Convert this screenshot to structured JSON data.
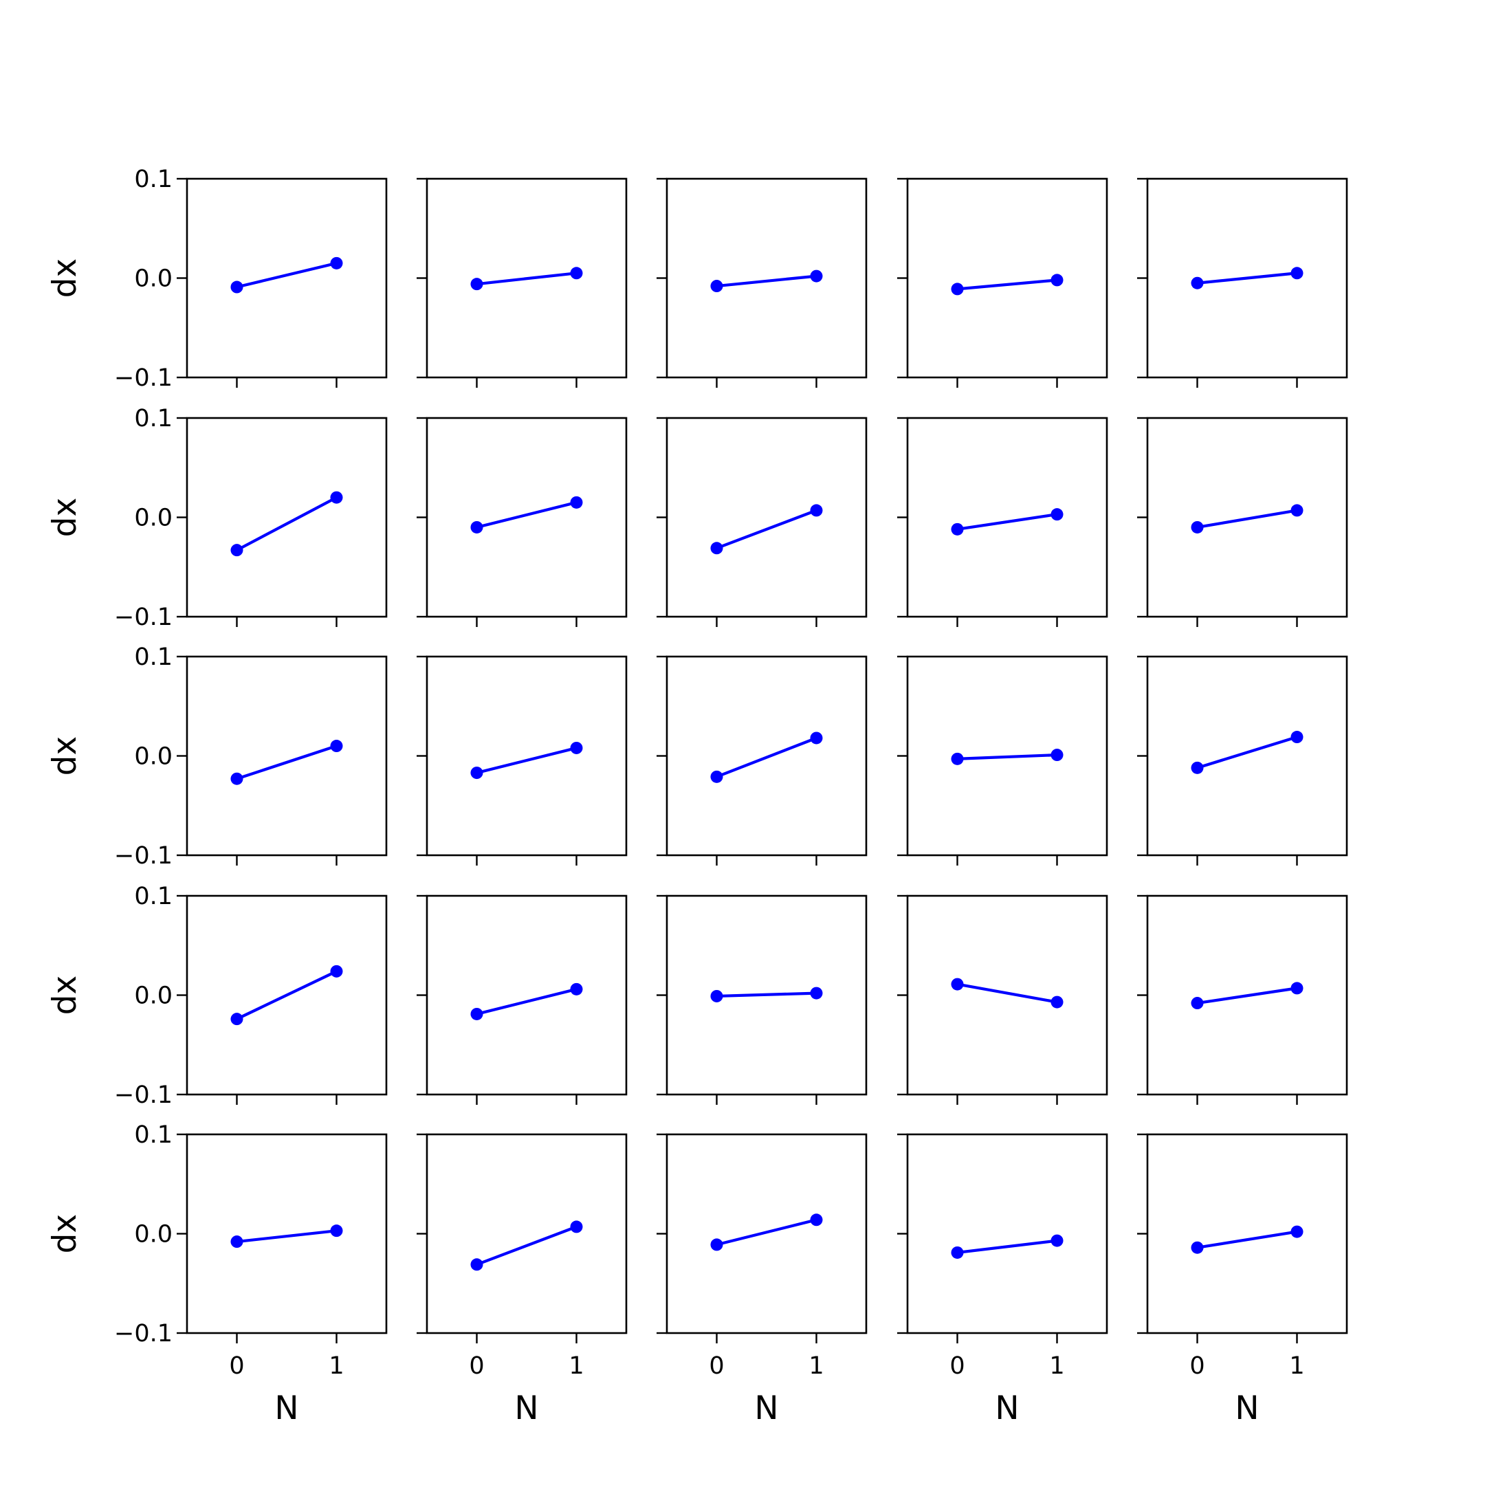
{
  "figure": {
    "rows": 5,
    "cols": 5,
    "line_color": "#0000ff",
    "axis_color": "#000000",
    "background": "#ffffff"
  },
  "chart_data": {
    "type": "line",
    "layout": "5x5 grid of subplots",
    "shared_x": true,
    "shared_y": true,
    "xlabel": "N",
    "ylabel": "dx",
    "x": [
      0,
      1
    ],
    "xlim": [
      -0.5,
      1.5
    ],
    "ylim": [
      -0.1,
      0.1
    ],
    "xticks": [
      0,
      1
    ],
    "xtick_labels": [
      "0",
      "1"
    ],
    "yticks": [
      -0.1,
      0.0,
      0.1
    ],
    "ytick_labels": [
      "−0.1",
      "0.0",
      "0.1"
    ],
    "marker": "circle",
    "grid": false,
    "legend": "none",
    "subplots": [
      [
        [
          -0.009,
          0.015
        ],
        [
          -0.006,
          0.005
        ],
        [
          -0.008,
          0.002
        ],
        [
          -0.011,
          -0.002
        ],
        [
          -0.005,
          0.005
        ]
      ],
      [
        [
          -0.033,
          0.02
        ],
        [
          -0.01,
          0.015
        ],
        [
          -0.031,
          0.007
        ],
        [
          -0.012,
          0.003
        ],
        [
          -0.01,
          0.007
        ]
      ],
      [
        [
          -0.023,
          0.01
        ],
        [
          -0.017,
          0.008
        ],
        [
          -0.021,
          0.018
        ],
        [
          -0.003,
          0.001
        ],
        [
          -0.012,
          0.019
        ]
      ],
      [
        [
          -0.024,
          0.024
        ],
        [
          -0.019,
          0.006
        ],
        [
          -0.001,
          0.002
        ],
        [
          0.011,
          -0.007
        ],
        [
          -0.008,
          0.007
        ]
      ],
      [
        [
          -0.008,
          0.003
        ],
        [
          -0.031,
          0.007
        ],
        [
          -0.011,
          0.014
        ],
        [
          -0.019,
          -0.007
        ],
        [
          -0.014,
          0.002
        ]
      ]
    ]
  }
}
